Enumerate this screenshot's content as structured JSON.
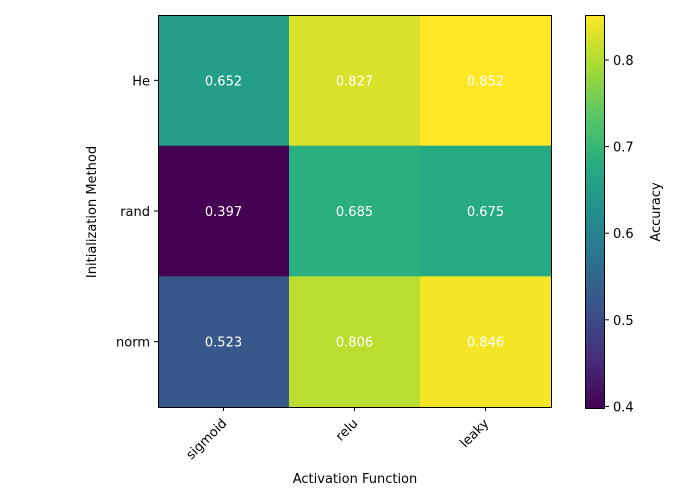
{
  "chart_data": {
    "type": "heatmap",
    "title": "",
    "xlabel": "Activation Function",
    "ylabel": "Initialization Method",
    "x_categories": [
      "sigmoid",
      "relu",
      "leaky"
    ],
    "y_categories": [
      "He",
      "rand",
      "norm"
    ],
    "values": [
      [
        0.652,
        0.827,
        0.852
      ],
      [
        0.397,
        0.685,
        0.675
      ],
      [
        0.523,
        0.806,
        0.846
      ]
    ],
    "value_labels": [
      [
        "0.652",
        "0.827",
        "0.852"
      ],
      [
        "0.397",
        "0.685",
        "0.675"
      ],
      [
        "0.523",
        "0.806",
        "0.846"
      ]
    ],
    "colormap": "viridis",
    "vmin": 0.397,
    "vmax": 0.852,
    "colorbar": {
      "label": "Accuracy",
      "ticks": [
        0.4,
        0.5,
        0.6,
        0.7,
        0.8
      ],
      "tick_labels": [
        "0.4",
        "0.5",
        "0.6",
        "0.7",
        "0.8"
      ]
    },
    "annotation_color": "#ffffff",
    "grid": false
  }
}
